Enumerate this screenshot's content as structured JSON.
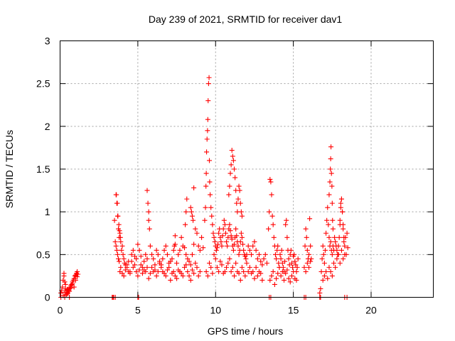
{
  "chart_data": {
    "type": "scatter",
    "title": "Day 239 of 2021, SRMTID for receiver dav1",
    "xlabel": "GPS time / hours",
    "ylabel": "SRMTID / TECUs",
    "xlim": [
      0,
      24
    ],
    "ylim": [
      0,
      3
    ],
    "xticks": [
      0,
      5,
      10,
      15,
      20
    ],
    "xtick_labels": [
      "0",
      "5",
      "10",
      "15",
      "20"
    ],
    "yticks": [
      0,
      0.5,
      1,
      1.5,
      2,
      2.5,
      3
    ],
    "ytick_labels": [
      "0",
      "0.5",
      "1",
      "1.5",
      "2",
      "2.5",
      "3"
    ],
    "grid": true,
    "marker": "+",
    "color": "#ff0000",
    "series": [
      {
        "name": "SRMTID",
        "x": [
          0.05,
          0.1,
          0.15,
          0.2,
          0.25,
          0.3,
          0.35,
          0.4,
          0.45,
          0.5,
          0.55,
          0.6,
          0.65,
          0.7,
          0.75,
          0.8,
          0.85,
          0.9,
          0.95,
          1.0,
          1.05,
          1.1,
          1.15,
          0.2,
          0.3,
          0.4,
          0.5,
          0.6,
          0.7,
          0.8,
          0.9,
          1.0,
          1.1,
          0.25,
          0.35,
          0.45,
          3.4,
          3.5,
          3.6,
          3.65,
          3.7,
          3.75,
          3.8,
          3.85,
          3.9,
          3.95,
          4.0,
          4.05,
          4.1,
          4.15,
          4.2,
          4.3,
          4.4,
          4.5,
          4.6,
          4.7,
          4.8,
          4.9,
          5.0,
          5.1,
          5.2,
          5.3,
          5.4,
          5.5,
          5.6,
          5.7,
          5.8,
          5.9,
          6.0,
          6.1,
          6.2,
          6.3,
          6.4,
          6.5,
          6.6,
          6.7,
          6.8,
          6.9,
          7.0,
          7.1,
          7.2,
          7.3,
          7.4,
          7.5,
          7.6,
          7.7,
          7.8,
          7.9,
          8.0,
          8.1,
          8.2,
          8.3,
          8.4,
          8.5,
          8.6,
          8.7,
          8.8,
          8.9,
          9.0,
          9.1,
          9.2,
          3.55,
          3.6,
          3.65,
          3.7,
          3.75,
          3.8,
          3.85,
          3.9,
          4.0,
          4.1,
          4.2,
          4.3,
          4.4,
          4.5,
          4.6,
          4.7,
          4.8,
          4.9,
          5.0,
          5.1,
          5.2,
          5.3,
          5.4,
          5.5,
          5.6,
          5.7,
          5.8,
          5.9,
          6.0,
          6.1,
          6.2,
          6.3,
          6.4,
          6.5,
          6.6,
          6.7,
          6.8,
          6.9,
          7.0,
          7.1,
          7.2,
          7.3,
          7.4,
          7.5,
          7.6,
          7.7,
          7.8,
          7.9,
          8.0,
          8.1,
          8.2,
          8.3,
          8.4,
          8.5,
          8.6,
          8.7,
          8.8,
          8.9,
          9.0,
          3.62,
          3.68,
          3.72,
          3.78,
          3.82,
          3.88,
          5.6,
          5.65,
          5.7,
          5.75,
          7.35,
          7.4,
          8.05,
          8.1,
          8.15,
          8.4,
          8.45,
          8.5,
          8.55,
          8.6,
          9.3,
          9.35,
          9.38,
          9.4,
          9.42,
          9.45,
          9.48,
          9.5,
          9.52,
          9.55,
          9.58,
          9.6,
          9.62,
          9.65,
          9.7,
          9.75,
          9.8,
          9.85,
          9.9,
          9.95,
          10.0,
          10.05,
          10.1,
          10.15,
          10.2,
          10.25,
          10.3,
          10.35,
          10.4,
          10.45,
          10.5,
          10.55,
          10.6,
          10.65,
          10.7,
          10.75,
          10.8,
          10.85,
          10.9,
          10.95,
          11.0,
          11.05,
          11.1,
          11.15,
          11.2,
          11.25,
          11.3,
          11.35,
          11.4,
          11.45,
          11.5,
          11.55,
          11.6,
          11.65,
          11.7,
          11.75,
          11.8,
          11.85,
          11.9,
          11.95,
          12.0,
          12.1,
          12.2,
          12.3,
          12.4,
          12.5,
          12.6,
          12.7,
          12.8,
          12.9,
          13.0,
          13.1,
          13.2,
          13.3,
          9.4,
          9.5,
          9.6,
          9.7,
          9.8,
          9.9,
          10.0,
          10.1,
          10.2,
          10.3,
          10.4,
          10.5,
          10.6,
          10.7,
          10.8,
          10.9,
          11.0,
          11.1,
          11.2,
          11.3,
          11.4,
          11.5,
          11.6,
          11.7,
          11.8,
          11.9,
          12.0,
          12.1,
          12.2,
          12.3,
          12.4,
          12.5,
          12.6,
          12.7,
          12.8,
          12.9,
          13.0,
          10.85,
          10.9,
          10.95,
          11.0,
          11.05,
          11.1,
          11.15,
          11.2,
          11.25,
          11.3,
          11.35,
          11.4,
          11.45,
          11.5,
          11.55,
          11.6,
          11.65,
          11.7,
          13.4,
          13.45,
          13.5,
          13.55,
          13.6,
          13.65,
          13.7,
          13.75,
          13.8,
          13.85,
          13.9,
          13.95,
          14.0,
          14.05,
          14.1,
          14.15,
          14.2,
          14.25,
          14.3,
          14.35,
          14.4,
          14.45,
          14.5,
          14.55,
          14.6,
          14.65,
          14.7,
          14.75,
          14.8,
          14.85,
          14.9,
          14.95,
          15.0,
          15.05,
          15.1,
          15.15,
          15.2,
          15.25,
          15.3,
          13.5,
          13.6,
          13.7,
          13.8,
          13.9,
          14.0,
          14.1,
          14.2,
          14.3,
          14.4,
          14.5,
          14.6,
          14.7,
          14.8,
          14.9,
          15.0,
          15.1,
          15.2,
          15.7,
          15.75,
          15.8,
          15.85,
          15.9,
          15.95,
          16.0,
          16.05,
          16.1,
          16.15,
          15.8,
          15.9,
          16.0,
          16.1,
          16.7,
          16.75,
          16.8,
          16.85,
          16.9,
          16.95,
          17.0,
          17.05,
          17.1,
          17.15,
          17.2,
          17.25,
          17.3,
          17.35,
          17.4,
          17.45,
          17.5,
          17.55,
          17.6,
          17.65,
          17.7,
          17.75,
          17.8,
          17.85,
          17.9,
          17.95,
          18.0,
          18.05,
          18.1,
          18.15,
          18.2,
          18.25,
          18.3,
          18.35,
          18.4,
          18.45,
          18.5,
          17.3,
          17.35,
          17.38,
          17.4,
          17.42,
          17.45,
          17.48,
          17.5,
          17.52,
          17.55,
          18.0,
          18.05,
          18.1,
          18.15,
          18.2,
          18.25,
          16.9,
          17.0,
          17.1,
          17.2,
          17.3,
          17.4,
          17.5,
          17.6,
          17.7,
          17.8,
          17.9,
          18.0,
          18.1,
          18.2,
          18.3,
          0.05,
          0.3,
          0.6,
          3.35,
          3.45,
          3.55,
          5.0,
          5.05,
          13.45,
          13.55,
          15.7,
          15.8,
          16.7,
          16.75,
          18.3,
          18.45
        ],
        "y": [
          0.05,
          0.08,
          0.12,
          0.2,
          0.25,
          0.18,
          0.1,
          0.06,
          0.04,
          0.05,
          0.08,
          0.1,
          0.12,
          0.14,
          0.15,
          0.18,
          0.2,
          0.22,
          0.25,
          0.26,
          0.28,
          0.3,
          0.27,
          0.02,
          0.06,
          0.03,
          0.09,
          0.07,
          0.11,
          0.16,
          0.12,
          0.2,
          0.24,
          0.28,
          0.15,
          0.09,
          0.0,
          0.9,
          1.2,
          1.1,
          0.95,
          0.8,
          0.7,
          0.75,
          0.65,
          0.55,
          0.6,
          0.5,
          0.45,
          0.4,
          0.38,
          0.35,
          0.42,
          0.3,
          0.5,
          0.55,
          0.38,
          0.45,
          0.62,
          0.55,
          0.48,
          0.35,
          0.42,
          0.5,
          0.45,
          1.0,
          0.6,
          0.5,
          0.45,
          0.38,
          0.55,
          0.5,
          0.42,
          0.35,
          0.45,
          0.55,
          0.6,
          0.5,
          0.4,
          0.42,
          0.45,
          0.55,
          0.62,
          0.4,
          0.5,
          0.55,
          0.7,
          0.6,
          0.58,
          0.5,
          0.45,
          0.42,
          0.38,
          0.5,
          0.62,
          0.8,
          0.75,
          0.6,
          0.55,
          0.7,
          0.58,
          0.65,
          0.6,
          0.55,
          0.5,
          0.45,
          0.42,
          0.3,
          0.35,
          0.28,
          0.25,
          0.32,
          0.38,
          0.3,
          0.28,
          0.42,
          0.35,
          0.48,
          0.3,
          0.25,
          0.32,
          0.38,
          0.28,
          0.32,
          0.3,
          0.35,
          0.22,
          0.28,
          0.35,
          0.3,
          0.32,
          0.25,
          0.3,
          0.4,
          0.38,
          0.3,
          0.28,
          0.25,
          0.32,
          0.35,
          0.2,
          0.28,
          0.3,
          0.25,
          0.22,
          0.32,
          0.3,
          0.28,
          0.25,
          0.35,
          0.38,
          0.3,
          0.25,
          0.2,
          0.32,
          0.28,
          0.4,
          0.35,
          0.25,
          0.3,
          1.2,
          1.1,
          0.95,
          0.85,
          0.78,
          0.7,
          1.25,
          1.1,
          0.9,
          0.8,
          0.6,
          0.72,
          0.85,
          1.0,
          1.15,
          1.05,
          1.0,
          0.95,
          0.9,
          1.28,
          0.9,
          1.05,
          1.3,
          1.45,
          1.7,
          1.85,
          1.95,
          2.08,
          2.3,
          2.5,
          2.57,
          1.6,
          1.35,
          1.2,
          1.05,
          0.95,
          0.85,
          0.75,
          0.7,
          0.65,
          0.6,
          0.55,
          0.58,
          0.62,
          0.75,
          0.8,
          0.7,
          0.65,
          0.6,
          0.72,
          0.8,
          0.9,
          0.85,
          0.75,
          0.65,
          0.6,
          0.7,
          0.8,
          0.85,
          0.78,
          0.72,
          0.68,
          0.6,
          0.55,
          0.62,
          0.7,
          0.8,
          0.72,
          0.65,
          0.6,
          0.5,
          0.55,
          0.65,
          0.75,
          0.7,
          0.62,
          0.55,
          0.5,
          0.48,
          0.45,
          0.5,
          0.6,
          0.55,
          0.5,
          0.6,
          0.65,
          0.55,
          0.45,
          0.5,
          0.42,
          0.38,
          0.45,
          0.5,
          0.4,
          0.3,
          0.25,
          0.4,
          0.35,
          0.28,
          0.5,
          0.45,
          0.35,
          0.3,
          0.42,
          0.38,
          0.28,
          0.3,
          0.35,
          0.4,
          0.45,
          0.3,
          0.35,
          0.25,
          0.4,
          0.3,
          0.28,
          0.2,
          0.35,
          0.3,
          0.25,
          0.4,
          0.3,
          0.35,
          0.28,
          0.3,
          0.22,
          0.35,
          0.25,
          0.3,
          0.28,
          0.2,
          1.2,
          1.3,
          1.45,
          1.55,
          1.72,
          1.65,
          1.6,
          1.5,
          1.4,
          1.25,
          1.1,
          1.0,
          1.15,
          1.3,
          1.25,
          1.1,
          1.0,
          0.95,
          0.8,
          1.0,
          1.38,
          1.35,
          1.2,
          0.95,
          0.85,
          0.7,
          0.6,
          0.5,
          0.45,
          0.55,
          0.6,
          0.4,
          0.35,
          0.5,
          0.45,
          0.55,
          0.4,
          0.35,
          0.3,
          0.42,
          0.85,
          0.9,
          0.7,
          0.55,
          0.45,
          0.38,
          0.5,
          0.55,
          0.4,
          0.35,
          0.48,
          0.5,
          0.42,
          0.38,
          0.3,
          0.35,
          0.45,
          0.2,
          0.25,
          0.3,
          0.15,
          0.22,
          0.28,
          0.35,
          0.25,
          0.3,
          0.2,
          0.28,
          0.32,
          0.22,
          0.18,
          0.25,
          0.3,
          0.22,
          0.2,
          0.35,
          0.6,
          0.8,
          0.7,
          0.55,
          0.45,
          0.5,
          0.92,
          0.6,
          0.45,
          0.3,
          0.4,
          0.35,
          0.42,
          0.05,
          0.1,
          0.3,
          0.45,
          0.6,
          0.5,
          0.4,
          0.55,
          0.75,
          0.9,
          1.05,
          0.85,
          0.7,
          0.6,
          0.65,
          0.55,
          0.5,
          0.6,
          0.55,
          0.7,
          0.65,
          0.6,
          0.55,
          0.5,
          0.6,
          0.7,
          0.85,
          1.1,
          1.15,
          1.0,
          0.8,
          0.65,
          0.6,
          0.7,
          0.5,
          0.75,
          0.58,
          1.2,
          1.35,
          1.5,
          1.62,
          1.76,
          1.45,
          1.3,
          1.1,
          0.9,
          0.8,
          0.9,
          1.05,
          1.15,
          1.0,
          0.85,
          0.7,
          0.2,
          0.25,
          0.3,
          0.22,
          0.35,
          0.3,
          0.25,
          0.4,
          0.35,
          0.45,
          0.5,
          0.4,
          0.55,
          0.45,
          0.5,
          0.0,
          0.0,
          0.0,
          0.0,
          0.0,
          0.0,
          0.0,
          0.0,
          0.0,
          0.0,
          0.0,
          0.0,
          0.0,
          0.0,
          0.0,
          0.0
        ]
      }
    ]
  }
}
